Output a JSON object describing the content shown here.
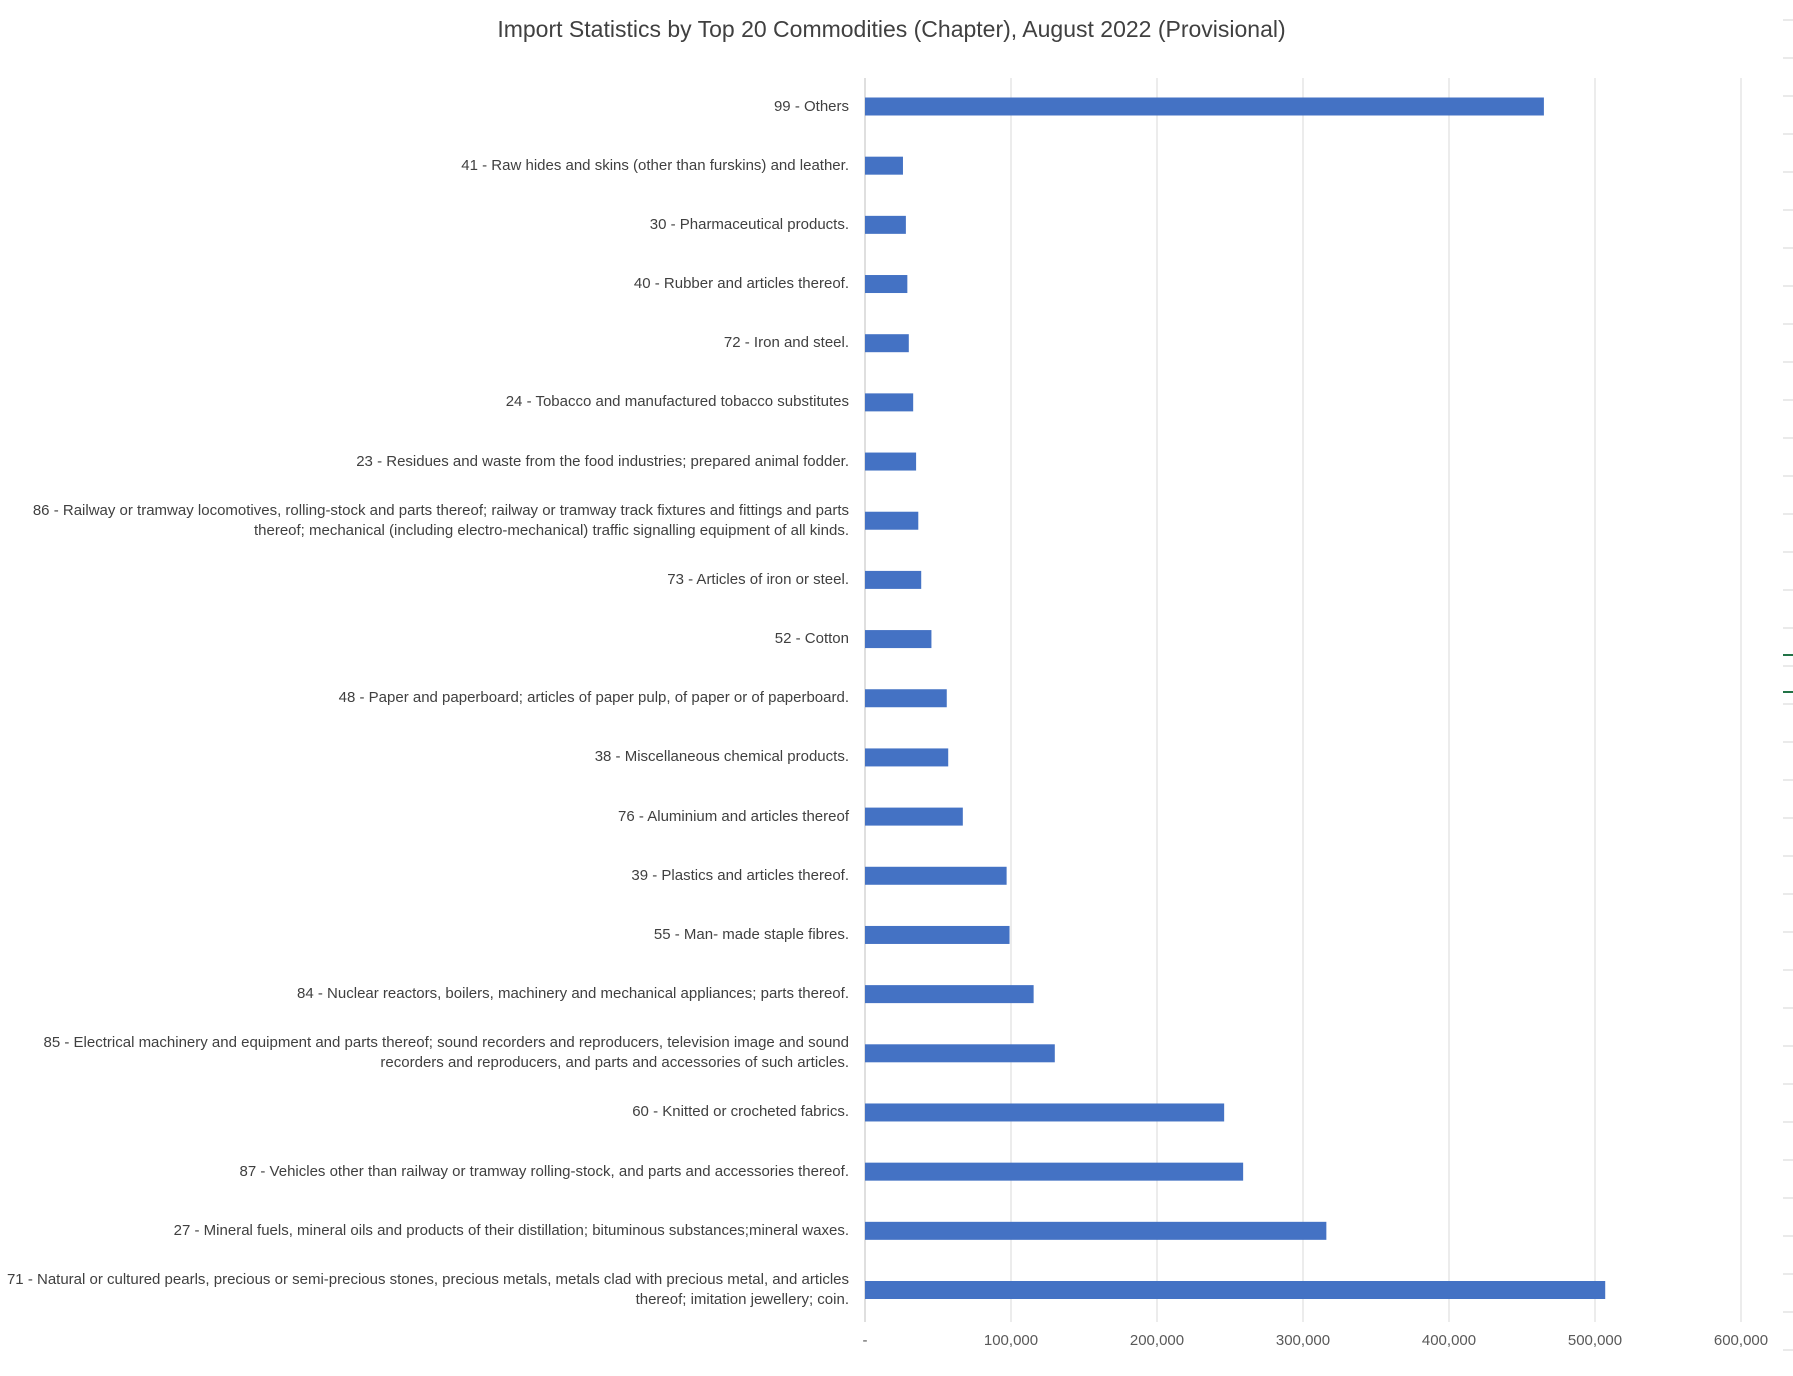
{
  "chart_data": {
    "type": "bar",
    "orientation": "horizontal",
    "title": "Import Statistics by Top 20 Commodities (Chapter), August 2022  (Provisional)",
    "xlabel": "",
    "ylabel": "",
    "xlim": [
      0,
      600000
    ],
    "x_ticks": [
      0,
      100000,
      200000,
      300000,
      400000,
      500000,
      600000
    ],
    "x_tick_labels": [
      "-",
      "100,000",
      "200,000",
      "300,000",
      "400,000",
      "500,000",
      "600,000"
    ],
    "grid": true,
    "legend": "none",
    "bar_color": "#4472C4",
    "categories": [
      "99 - Others",
      "41 - Raw hides and skins (other than furskins) and leather.",
      "30 - Pharmaceutical products.",
      "40 - Rubber and articles thereof.",
      "72 - Iron and steel.",
      "24 - Tobacco and manufactured tobacco substitutes",
      "23 - Residues and waste from the food industries; prepared animal fodder.",
      "86 - Railway or tramway locomotives, rolling-stock and parts thereof; railway or tramway track fixtures and fittings and parts thereof; mechanical (including electro-mechanical) traffic signalling equipment of all kinds.",
      "73 - Articles of iron or steel.",
      "52 - Cotton",
      "48 - Paper and paperboard; articles of paper pulp, of paper or of paperboard.",
      "38 - Miscellaneous chemical products.",
      "76 - Aluminium and articles thereof",
      "39 - Plastics and articles thereof.",
      "55 - Man- made staple fibres.",
      "84 - Nuclear reactors, boilers, machinery and mechanical appliances; parts thereof.",
      "85 - Electrical machinery and equipment and parts thereof; sound recorders and reproducers, television image and sound recorders and reproducers, and parts and accessories of such articles.",
      "60 - Knitted or crocheted fabrics.",
      "87 - Vehicles other than railway or tramway rolling-stock, and parts and accessories thereof.",
      "27 - Mineral fuels, mineral oils and products of their distillation; bituminous substances;mineral waxes.",
      "71 - Natural or cultured pearls, precious or semi-precious stones, precious metals, metals clad with precious metal, and articles thereof; imitation jewellery; coin."
    ],
    "values": [
      465000,
      26000,
      28000,
      29000,
      30000,
      33000,
      35000,
      36500,
      38500,
      45500,
      56000,
      57000,
      67000,
      97000,
      99000,
      115500,
      130000,
      246000,
      259000,
      316000,
      507000
    ]
  }
}
